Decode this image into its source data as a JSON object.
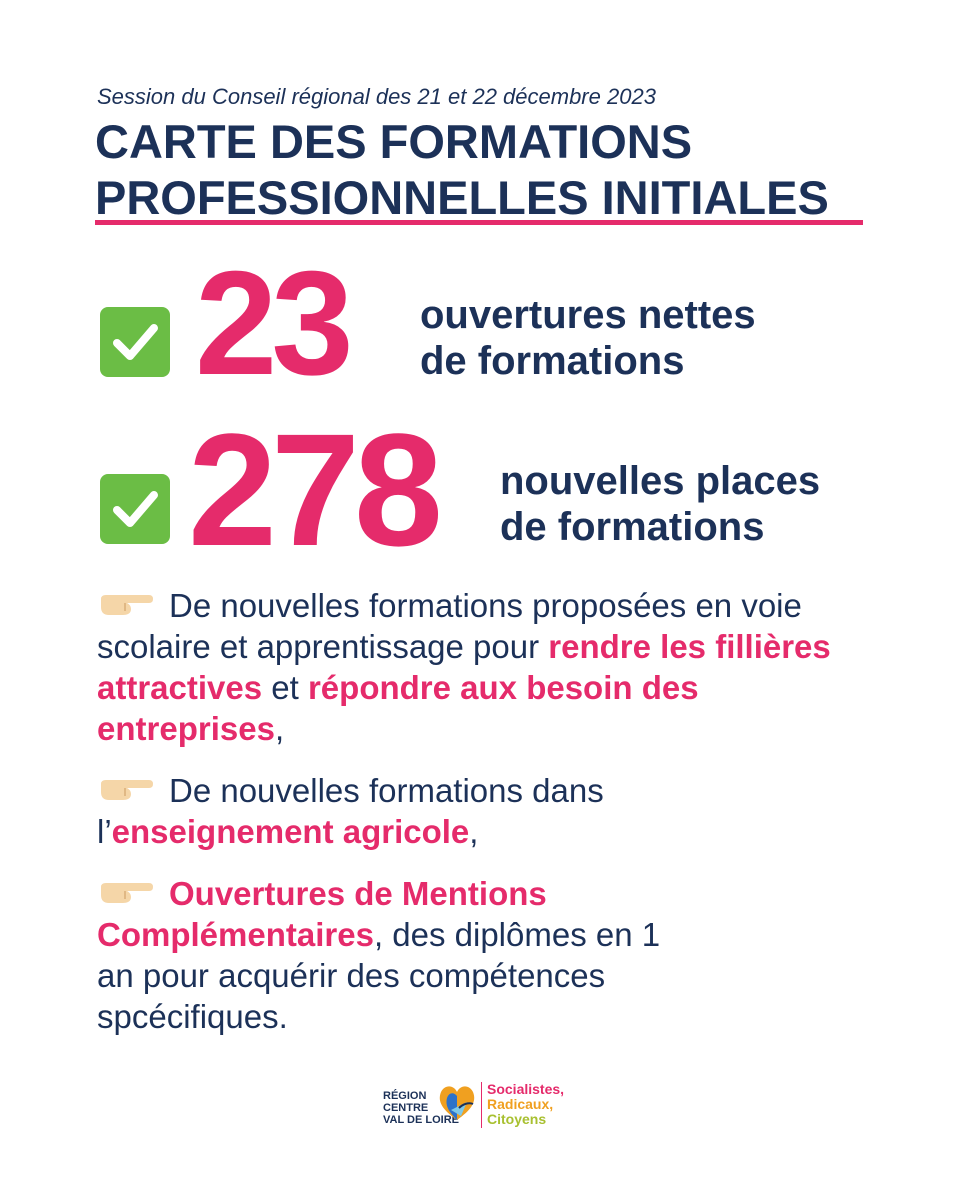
{
  "header": {
    "subtitle": "Session du Conseil régional des 21 et 22 décembre 2023",
    "title_line1": "CARTE DES FORMATIONS",
    "title_line2": "PROFESSIONNELLES INITIALES"
  },
  "stats": [
    {
      "number": "23",
      "line1": "ouvertures nettes",
      "line2": "de formations",
      "icon": "check-icon"
    },
    {
      "number": "278",
      "line1": "nouvelles places",
      "line2": "de formations",
      "icon": "check-icon"
    }
  ],
  "points": [
    {
      "icon": "pointing-hand-icon",
      "text1": "De nouvelles formations proposées en voie scolaire et apprentissage pour ",
      "hl1": "rendre les fillières attractives",
      "text2": " et ",
      "hl2": "répondre aux besoin des entreprises",
      "text3": ","
    },
    {
      "icon": "pointing-hand-icon",
      "text1": "De nouvelles formations dans l’",
      "hl1": "enseignement agricole",
      "text2": ","
    },
    {
      "icon": "pointing-hand-icon",
      "hl1": "Ouvertures de Mentions Complémentaires",
      "text1": ", des diplômes en 1 an pour acquérir des compétences spcécifiques."
    }
  ],
  "footer": {
    "region_line1": "RÉGION",
    "region_line2": "CENTRE",
    "region_line3": "VAL DE LOIRE",
    "party_line1": "Socialistes,",
    "party_line2": "Radicaux,",
    "party_line3": "Citoyens"
  },
  "colors": {
    "navy": "#1c3158",
    "pink": "#e52b6b",
    "green": "#6bbd45",
    "orange": "#f0a020",
    "yellow_green": "#a8c030"
  }
}
